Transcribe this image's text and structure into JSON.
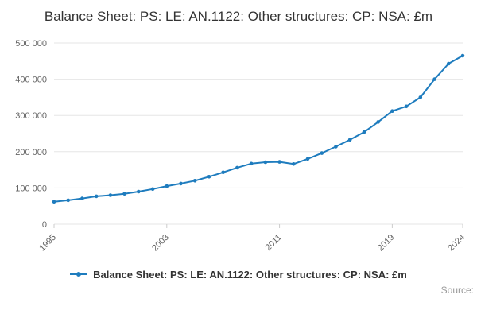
{
  "title": "Balance Sheet: PS: LE: AN.1122: Other structures: CP: NSA: £m",
  "source_label": "Source:",
  "legend": {
    "label": "Balance Sheet: PS: LE: AN.1122: Other structures: CP: NSA: £m"
  },
  "colors": {
    "series": "#1e7cbe",
    "grid": "#e6e6e6",
    "axis_text": "#666666",
    "title_text": "#333333",
    "axis_line": "#cccccc"
  },
  "chart_data": {
    "type": "line",
    "title": "Balance Sheet: PS: LE: AN.1122: Other structures: CP: NSA: £m",
    "xlabel": "",
    "ylabel": "",
    "x": [
      1995,
      1996,
      1997,
      1998,
      1999,
      2000,
      2001,
      2002,
      2003,
      2004,
      2005,
      2006,
      2007,
      2008,
      2009,
      2010,
      2011,
      2012,
      2013,
      2014,
      2015,
      2016,
      2017,
      2018,
      2019,
      2020,
      2021,
      2022,
      2023,
      2024
    ],
    "series": [
      {
        "name": "Balance Sheet: PS: LE: AN.1122: Other structures: CP: NSA: £m",
        "values": [
          62000,
          66000,
          71000,
          77000,
          80000,
          84000,
          90000,
          97000,
          105000,
          112000,
          120000,
          131000,
          143000,
          156000,
          167000,
          171000,
          172000,
          166000,
          180000,
          196000,
          214000,
          233000,
          254000,
          282000,
          312000,
          325000,
          350000,
          400000,
          443000,
          465000
        ]
      }
    ],
    "ylim": [
      0,
      500000
    ],
    "yticks": [
      0,
      100000,
      200000,
      300000,
      400000,
      500000
    ],
    "ytick_labels": [
      "0",
      "100 000",
      "200 000",
      "300 000",
      "400 000",
      "500 000"
    ],
    "xticks": [
      1995,
      2003,
      2011,
      2019,
      2024
    ],
    "xtick_labels": [
      "1995",
      "2003",
      "2011",
      "2019",
      "2024"
    ],
    "grid": "horizontal",
    "legend_position": "bottom",
    "marker": "circle"
  }
}
